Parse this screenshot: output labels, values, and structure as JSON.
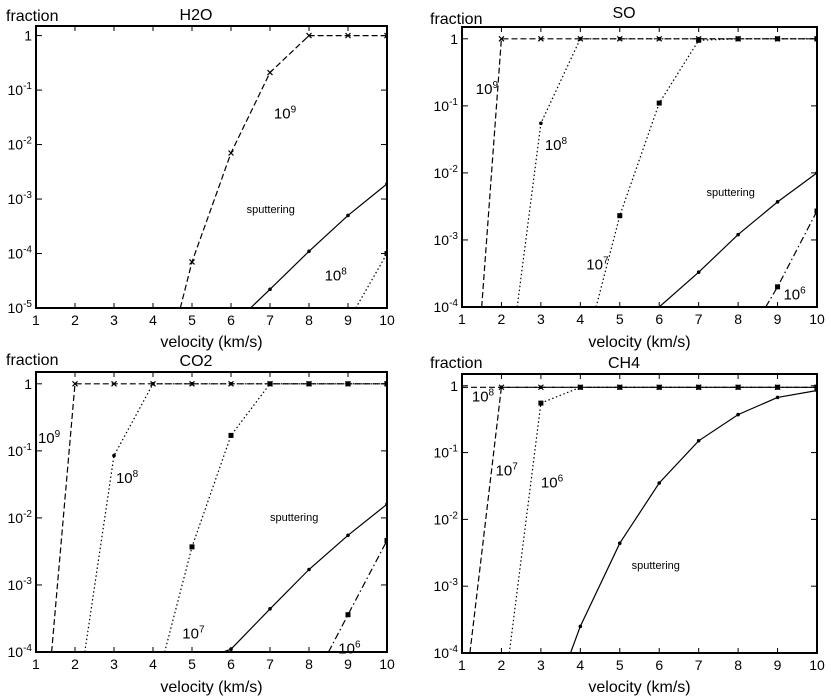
{
  "colors": {
    "line": "#000000",
    "frame": "#000000",
    "background": "#ffffff"
  },
  "chart_data": [
    {
      "type": "line",
      "title": "H2O",
      "xlabel": "velocity (km/s)",
      "ylabel": "fraction",
      "xlim": [
        1,
        10
      ],
      "ylim": [
        1e-05,
        1.5
      ],
      "yscale": "log",
      "xticks": [
        "1",
        "2",
        "3",
        "4",
        "5",
        "6",
        "7",
        "8",
        "9",
        "10"
      ],
      "yticks": [
        {
          "base": "1",
          "exp": ""
        },
        {
          "base": "10",
          "exp": "-1"
        },
        {
          "base": "10",
          "exp": "-2"
        },
        {
          "base": "10",
          "exp": "-3"
        },
        {
          "base": "10",
          "exp": "-4"
        },
        {
          "base": "10",
          "exp": "-5"
        }
      ],
      "series": [
        {
          "style": "dashed",
          "marker": "x",
          "x": [
            4.7,
            5,
            6,
            7,
            8,
            9,
            10
          ],
          "y": [
            1e-05,
            7e-05,
            0.007,
            0.21,
            1,
            1,
            1
          ]
        },
        {
          "style": "solid",
          "marker": "dot",
          "x": [
            6.5,
            7,
            8,
            9,
            10
          ],
          "y": [
            1e-05,
            2.2e-05,
            0.00011,
            0.0005,
            0.0019
          ]
        },
        {
          "style": "dotted",
          "marker": "square",
          "x": [
            9.2,
            10
          ],
          "y": [
            1e-05,
            0.0001
          ]
        }
      ],
      "annotations": [
        {
          "base": "10",
          "exp": "9",
          "x": 7.1,
          "y": 0.03
        },
        {
          "text": "sputtering",
          "x": 6.4,
          "y": 0.00055,
          "small": true
        },
        {
          "base": "10",
          "exp": "8",
          "x": 8.4,
          "y": 3.2e-05
        }
      ]
    },
    {
      "type": "line",
      "title": "SO",
      "xlabel": "velocity (km/s)",
      "ylabel": "fraction",
      "xlim": [
        1,
        10
      ],
      "ylim": [
        0.0001,
        1.5
      ],
      "yscale": "log",
      "xticks": [
        "1",
        "2",
        "3",
        "4",
        "5",
        "6",
        "7",
        "8",
        "9",
        "10"
      ],
      "yticks": [
        {
          "base": "1",
          "exp": ""
        },
        {
          "base": "10",
          "exp": "-1"
        },
        {
          "base": "10",
          "exp": "-2"
        },
        {
          "base": "10",
          "exp": "-3"
        },
        {
          "base": "10",
          "exp": "-4"
        }
      ],
      "series": [
        {
          "style": "dashed",
          "marker": "x",
          "x": [
            1.5,
            2,
            3,
            4,
            5,
            6,
            7,
            8,
            9,
            10
          ],
          "y": [
            0.0001,
            1,
            1,
            1,
            1,
            1,
            1,
            1,
            1,
            1
          ]
        },
        {
          "style": "dotted",
          "marker": "dot",
          "x": [
            2.4,
            3,
            4,
            5,
            6,
            7,
            8,
            9,
            10
          ],
          "y": [
            0.0001,
            0.055,
            1,
            1,
            1,
            1,
            1,
            1,
            1
          ]
        },
        {
          "style": "dotted",
          "marker": "square",
          "x": [
            4.4,
            5,
            6,
            7,
            8,
            9,
            10
          ],
          "y": [
            0.0001,
            0.0023,
            0.11,
            0.95,
            1,
            1,
            1
          ]
        },
        {
          "style": "solid",
          "marker": "dot",
          "x": [
            6,
            7,
            8,
            9,
            10
          ],
          "y": [
            0.0001,
            0.00033,
            0.0012,
            0.0037,
            0.01
          ]
        },
        {
          "style": "dashdot",
          "marker": "square",
          "x": [
            8.7,
            9,
            10
          ],
          "y": [
            0.0001,
            0.0002,
            0.0027
          ]
        }
      ],
      "annotations": [
        {
          "base": "10",
          "exp": "9",
          "x": 1.35,
          "y": 0.15
        },
        {
          "base": "10",
          "exp": "8",
          "x": 3.1,
          "y": 0.022
        },
        {
          "base": "10",
          "exp": "7",
          "x": 4.15,
          "y": 0.00036
        },
        {
          "text": "sputtering",
          "x": 7.2,
          "y": 0.0045,
          "small": true
        },
        {
          "base": "10",
          "exp": "6",
          "x": 9.15,
          "y": 0.00013
        }
      ]
    },
    {
      "type": "line",
      "title": "CO2",
      "xlabel": "velocity (km/s)",
      "ylabel": "fraction",
      "xlim": [
        1,
        10
      ],
      "ylim": [
        0.0001,
        1.5
      ],
      "yscale": "log",
      "xticks": [
        "1",
        "2",
        "3",
        "4",
        "5",
        "6",
        "7",
        "8",
        "9",
        "10"
      ],
      "yticks": [
        {
          "base": "1",
          "exp": ""
        },
        {
          "base": "10",
          "exp": "-1"
        },
        {
          "base": "10",
          "exp": "-2"
        },
        {
          "base": "10",
          "exp": "-3"
        },
        {
          "base": "10",
          "exp": "-4"
        }
      ],
      "series": [
        {
          "style": "dashed",
          "marker": "x",
          "x": [
            1.4,
            2,
            3,
            4,
            5,
            6,
            7,
            8,
            9,
            10
          ],
          "y": [
            0.0001,
            1,
            1,
            1,
            1,
            1,
            1,
            1,
            1,
            1
          ]
        },
        {
          "style": "dotted",
          "marker": "dot",
          "x": [
            2.25,
            3,
            4,
            5,
            6,
            7,
            8,
            9,
            10
          ],
          "y": [
            0.0001,
            0.085,
            1,
            1,
            1,
            1,
            1,
            1,
            1
          ]
        },
        {
          "style": "dotted",
          "marker": "square",
          "x": [
            4.3,
            5,
            6,
            7,
            8,
            9,
            10
          ],
          "y": [
            0.0001,
            0.0037,
            0.17,
            1,
            1,
            1,
            1
          ]
        },
        {
          "style": "solid",
          "marker": "dot",
          "x": [
            5.8,
            6,
            7,
            8,
            9,
            10
          ],
          "y": [
            0.0001,
            0.00011,
            0.00044,
            0.0017,
            0.0055,
            0.016
          ]
        },
        {
          "style": "dashdot",
          "marker": "square",
          "x": [
            8.5,
            9,
            10
          ],
          "y": [
            0.0001,
            0.00036,
            0.0046
          ]
        }
      ],
      "annotations": [
        {
          "base": "10",
          "exp": "9",
          "x": 1.05,
          "y": 0.13
        },
        {
          "base": "10",
          "exp": "8",
          "x": 3.05,
          "y": 0.033
        },
        {
          "base": "10",
          "exp": "7",
          "x": 4.75,
          "y": 0.00016
        },
        {
          "text": "sputtering",
          "x": 7.0,
          "y": 0.009,
          "small": true
        },
        {
          "base": "10",
          "exp": "6",
          "x": 8.75,
          "y": 9.5e-05
        }
      ]
    },
    {
      "type": "line",
      "title": "CH4",
      "xlabel": "velocity (km/s)",
      "ylabel": "fraction",
      "xlim": [
        1,
        10
      ],
      "ylim": [
        0.0001,
        1.5
      ],
      "yscale": "log",
      "xticks": [
        "1",
        "2",
        "3",
        "4",
        "5",
        "6",
        "7",
        "8",
        "9",
        "10"
      ],
      "yticks": [
        {
          "base": "1",
          "exp": ""
        },
        {
          "base": "10",
          "exp": "-1"
        },
        {
          "base": "10",
          "exp": "-2"
        },
        {
          "base": "10",
          "exp": "-3"
        },
        {
          "base": "10",
          "exp": "-4"
        }
      ],
      "series": [
        {
          "style": "dashed",
          "marker": "x",
          "x": [
            1,
            2,
            3,
            4,
            5,
            6,
            7,
            8,
            9,
            10
          ],
          "y": [
            0.95,
            0.95,
            0.95,
            0.95,
            0.95,
            0.95,
            0.95,
            0.95,
            0.95,
            0.95
          ]
        },
        {
          "style": "dashed",
          "marker": "dot",
          "x": [
            1.2,
            2,
            3,
            4,
            5,
            6,
            7,
            8,
            9,
            10
          ],
          "y": [
            0.0001,
            0.95,
            0.95,
            0.95,
            0.95,
            0.95,
            0.95,
            0.95,
            0.95,
            0.95
          ]
        },
        {
          "style": "dotted",
          "marker": "square",
          "x": [
            2.2,
            3,
            4,
            5,
            6,
            7,
            8,
            9,
            10
          ],
          "y": [
            0.0001,
            0.55,
            0.95,
            0.95,
            0.95,
            0.95,
            0.95,
            0.95,
            0.95
          ]
        },
        {
          "style": "solid",
          "marker": "dot",
          "x": [
            3.75,
            4,
            5,
            6,
            7,
            8,
            9,
            10
          ],
          "y": [
            0.0001,
            0.00025,
            0.0044,
            0.035,
            0.15,
            0.37,
            0.67,
            0.85
          ]
        }
      ],
      "annotations": [
        {
          "base": "10",
          "exp": "8",
          "x": 1.25,
          "y": 0.58
        },
        {
          "base": "10",
          "exp": "7",
          "x": 1.85,
          "y": 0.045
        },
        {
          "base": "10",
          "exp": "6",
          "x": 3.0,
          "y": 0.03
        },
        {
          "text": "sputtering",
          "x": 5.3,
          "y": 0.0018,
          "small": true
        }
      ]
    }
  ]
}
